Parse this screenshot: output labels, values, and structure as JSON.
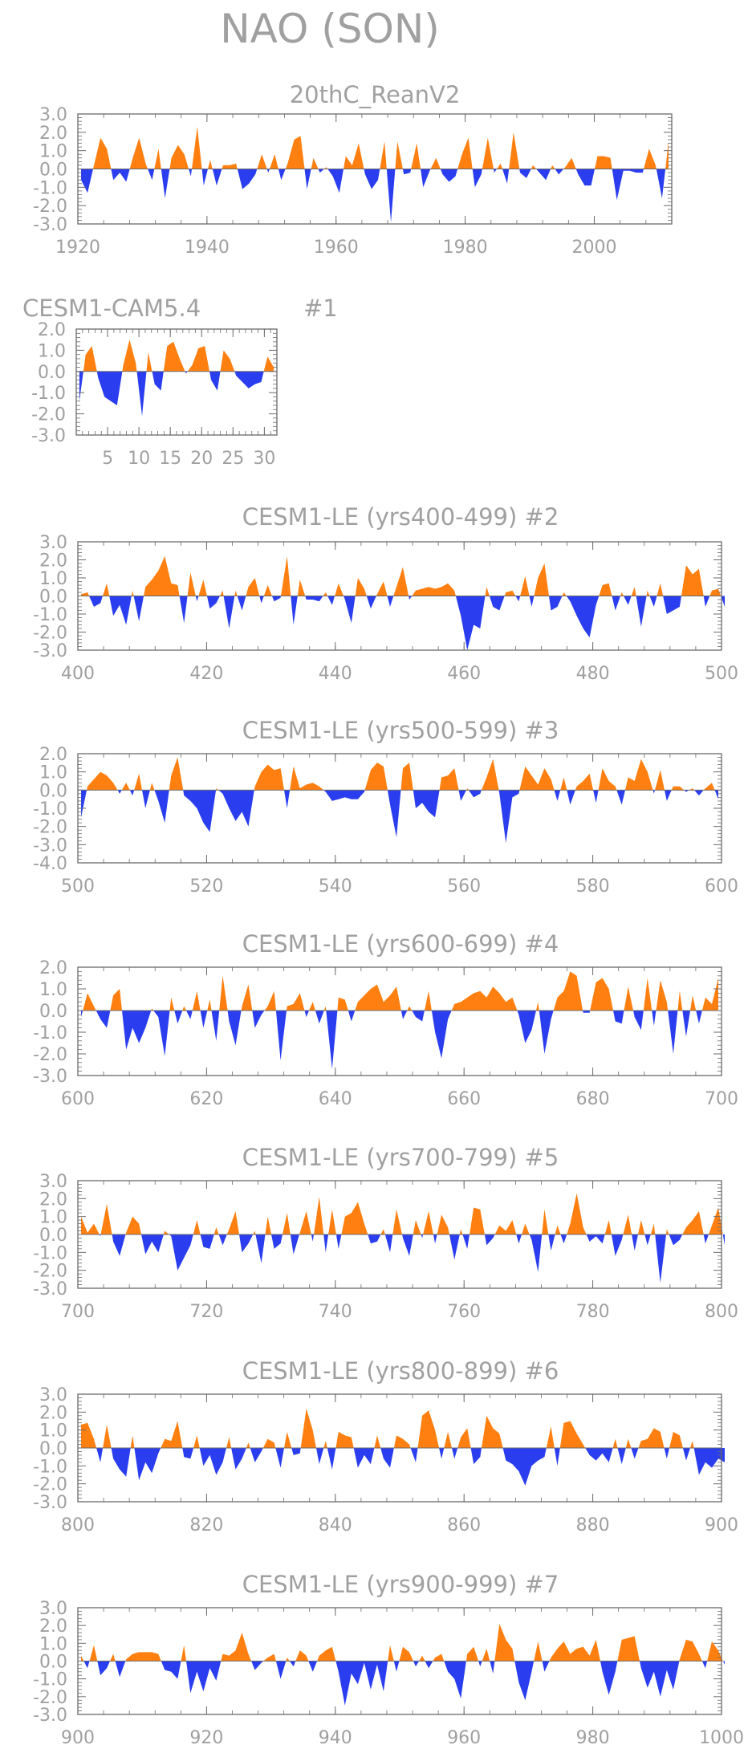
{
  "main_title": "NAO (SON)",
  "colors": {
    "positive": "#ff8010",
    "negative": "#2a3ef0",
    "axis": "#6a6a6a",
    "text": "#a0a0a0"
  },
  "chart_data": [
    {
      "type": "area",
      "title": "20thC_ReanV2",
      "xlim": [
        1920,
        2012
      ],
      "ylim": [
        -3.0,
        3.0
      ],
      "xticks": [
        1920,
        1940,
        1960,
        1980,
        2000
      ],
      "yticks": [
        -3.0,
        -2.0,
        -1.0,
        0.0,
        1.0,
        2.0,
        3.0
      ],
      "x_start": 1920,
      "values": [
        -0.6,
        -1.3,
        0.2,
        1.7,
        1.1,
        -0.6,
        -0.2,
        -0.7,
        0.6,
        1.7,
        0.3,
        -0.6,
        1.1,
        -1.6,
        0.6,
        1.3,
        0.8,
        -0.4,
        2.3,
        -0.9,
        0.5,
        -0.9,
        0.2,
        0.2,
        0.3,
        -1.1,
        -0.8,
        -0.3,
        0.8,
        -0.2,
        0.8,
        -0.6,
        0.3,
        1.6,
        1.8,
        -1.1,
        0.6,
        -0.2,
        0.1,
        -0.4,
        -1.3,
        0.7,
        0.2,
        1.4,
        -0.3,
        -1.1,
        -0.6,
        1.5,
        -2.9,
        1.5,
        -0.3,
        -0.2,
        1.4,
        -1.0,
        -0.1,
        0.6,
        -0.3,
        -0.7,
        -0.4,
        0.8,
        1.7,
        -1.0,
        -0.3,
        1.7,
        -0.2,
        0.3,
        -0.8,
        2.0,
        -0.2,
        -0.5,
        0.2,
        -0.2,
        -0.6,
        0.2,
        -0.3,
        0.1,
        0.6,
        -0.3,
        -0.9,
        -0.9,
        0.7,
        0.7,
        0.6,
        -1.7,
        -0.1,
        -0.1,
        -0.2,
        -0.2,
        1.1,
        0.2,
        -1.6,
        1.5
      ]
    },
    {
      "type": "area",
      "title": "CESM1-CAM5.4",
      "label": "#1",
      "xlim": [
        0,
        32
      ],
      "ylim": [
        -3.0,
        2.0
      ],
      "xticks": [
        5,
        10,
        15,
        20,
        25,
        30
      ],
      "yticks": [
        -3.0,
        -2.0,
        -1.0,
        0.0,
        1.0,
        2.0
      ],
      "x_start": 0,
      "values": [
        -1.4,
        0.8,
        1.2,
        -0.3,
        -1.2,
        -1.4,
        -1.6,
        0.3,
        1.5,
        0.4,
        -2.1,
        0.9,
        -0.6,
        -0.9,
        1.2,
        1.4,
        0.6,
        -0.1,
        0.3,
        1.1,
        1.2,
        -0.4,
        -0.9,
        1.0,
        0.6,
        -0.2,
        -0.5,
        -0.8,
        -0.6,
        -0.5,
        0.7,
        0.2
      ]
    },
    {
      "type": "area",
      "title": "CESM1-LE (yrs400-499)",
      "label": "#2",
      "xlim": [
        400,
        500
      ],
      "ylim": [
        -3.0,
        3.0
      ],
      "xticks": [
        400,
        420,
        440,
        460,
        480,
        500
      ],
      "yticks": [
        -3.0,
        -2.0,
        -1.0,
        0.0,
        1.0,
        2.0,
        3.0
      ],
      "x_start": 400,
      "values": [
        0.1,
        0.2,
        -0.6,
        -0.4,
        0.7,
        -1.1,
        -0.5,
        -1.6,
        0.3,
        -1.4,
        0.5,
        0.9,
        1.4,
        2.2,
        0.7,
        0.6,
        -1.5,
        1.3,
        -0.3,
        0.9,
        -0.7,
        -0.4,
        0.3,
        -1.8,
        0.3,
        -0.8,
        0.5,
        1.0,
        -0.4,
        0.6,
        -0.3,
        -0.1,
        2.2,
        -1.6,
        0.9,
        -0.2,
        -0.2,
        -0.3,
        0.2,
        -0.5,
        0.7,
        -0.2,
        -1.5,
        1.0,
        0.4,
        -0.7,
        0.1,
        0.8,
        -0.6,
        0.5,
        1.6,
        -0.2,
        0.3,
        0.4,
        0.5,
        0.4,
        0.5,
        0.7,
        0.3,
        -1.1,
        -3.0,
        -1.6,
        -1.8,
        0.5,
        -0.6,
        -0.8,
        0.2,
        0.3,
        -0.3,
        1.1,
        -0.6,
        1.0,
        1.8,
        -0.8,
        -0.6,
        0.2,
        -0.3,
        -1.1,
        -1.8,
        -2.3,
        -0.5,
        0.6,
        0.7,
        -0.8,
        0.2,
        -0.5,
        0.5,
        -1.7,
        0.3,
        -0.6,
        0.7,
        -1.0,
        -0.8,
        -0.6,
        1.7,
        1.2,
        1.5,
        -0.6,
        0.3,
        0.4,
        -0.6
      ]
    },
    {
      "type": "area",
      "title": "CESM1-LE (yrs500-599)",
      "label": "#3",
      "xlim": [
        500,
        600
      ],
      "ylim": [
        -4.0,
        2.0
      ],
      "xticks": [
        500,
        520,
        540,
        560,
        580,
        600
      ],
      "yticks": [
        -4.0,
        -3.0,
        -2.0,
        -1.0,
        0.0,
        1.0,
        2.0
      ],
      "x_start": 500,
      "values": [
        -1.5,
        0.2,
        0.6,
        1.0,
        0.8,
        0.4,
        -0.2,
        0.4,
        -0.3,
        0.9,
        -1.0,
        0.4,
        -0.6,
        -1.8,
        0.8,
        1.8,
        -0.3,
        -0.6,
        -1.0,
        -1.8,
        -2.3,
        0.1,
        -0.2,
        -1.0,
        -1.7,
        -1.2,
        -2.0,
        0.2,
        1.0,
        1.4,
        1.1,
        1.2,
        -1.0,
        1.3,
        0.1,
        0.3,
        0.4,
        0.2,
        -0.1,
        -0.6,
        -0.5,
        -0.4,
        -0.5,
        -0.5,
        -0.1,
        1.1,
        1.5,
        1.3,
        -0.8,
        -2.6,
        1.2,
        1.5,
        -1.0,
        -0.7,
        -1.2,
        -1.5,
        0.7,
        0.8,
        1.2,
        -0.6,
        0.1,
        -0.4,
        -0.2,
        0.7,
        1.7,
        -0.2,
        -2.9,
        -0.4,
        -0.2,
        1.3,
        0.8,
        0.3,
        1.2,
        0.6,
        -0.6,
        0.7,
        -0.8,
        0.2,
        0.5,
        0.9,
        -0.7,
        1.2,
        0.5,
        0.2,
        -0.8,
        0.7,
        0.5,
        1.7,
        1.0,
        -0.2,
        1.1,
        -0.6,
        0.2,
        0.2,
        -0.1,
        0.1,
        -0.3,
        0.1,
        0.4,
        -0.5
      ]
    },
    {
      "type": "area",
      "title": "CESM1-LE (yrs600-699)",
      "label": "#4",
      "xlim": [
        600,
        700
      ],
      "ylim": [
        -3.0,
        2.0
      ],
      "xticks": [
        600,
        620,
        640,
        660,
        680,
        700
      ],
      "yticks": [
        -3.0,
        -2.0,
        -1.0,
        0.0,
        1.0,
        2.0
      ],
      "x_start": 600,
      "values": [
        -0.3,
        0.8,
        0.2,
        -0.4,
        -0.8,
        0.7,
        1.0,
        -1.8,
        -0.8,
        -1.5,
        -0.8,
        0.1,
        -0.3,
        -2.1,
        0.6,
        -0.6,
        0.2,
        -0.4,
        0.9,
        -0.8,
        0.5,
        -1.4,
        1.6,
        -0.5,
        -1.6,
        0.2,
        1.2,
        -0.8,
        -0.2,
        0.2,
        0.9,
        -2.3,
        0.2,
        0.3,
        0.8,
        -0.3,
        0.4,
        -0.6,
        0.2,
        -2.7,
        0.6,
        0.5,
        -0.5,
        0.4,
        0.7,
        1.0,
        1.2,
        0.4,
        0.7,
        1.1,
        -0.4,
        0.2,
        -0.3,
        -0.5,
        0.9,
        -1.0,
        -2.2,
        -0.4,
        0.3,
        0.4,
        0.6,
        0.8,
        0.9,
        0.6,
        1.1,
        0.8,
        0.4,
        0.6,
        -0.2,
        -1.5,
        -0.9,
        0.4,
        -2.0,
        -0.4,
        0.6,
        0.9,
        1.8,
        1.6,
        -0.1,
        -0.1,
        1.3,
        1.5,
        1.0,
        -0.5,
        -0.6,
        1.1,
        -0.3,
        -0.9,
        1.5,
        -0.7,
        1.4,
        0.4,
        -2.0,
        0.9,
        -1.2,
        0.7,
        -0.6,
        0.6,
        0.3,
        1.5
      ]
    },
    {
      "type": "area",
      "title": "CESM1-LE (yrs700-799)",
      "label": "#5",
      "xlim": [
        700,
        800
      ],
      "ylim": [
        -3.0,
        3.0
      ],
      "xticks": [
        700,
        720,
        740,
        760,
        780,
        800
      ],
      "yticks": [
        -3.0,
        -2.0,
        -1.0,
        0.0,
        1.0,
        2.0,
        3.0
      ],
      "x_start": 700,
      "values": [
        1.0,
        0.1,
        0.6,
        -0.1,
        1.7,
        -0.4,
        -1.2,
        0.1,
        1.0,
        0.6,
        -1.1,
        -0.4,
        -1.0,
        0.2,
        -0.1,
        -2.0,
        -1.3,
        -0.6,
        0.8,
        -0.7,
        -0.8,
        0.4,
        -0.6,
        0.3,
        1.3,
        -1.0,
        -0.5,
        0.2,
        -1.6,
        1.0,
        -0.8,
        -0.5,
        1.2,
        -1.1,
        0.1,
        1.3,
        -0.4,
        2.1,
        -1.0,
        1.4,
        -0.8,
        1.0,
        1.2,
        1.8,
        0.6,
        -0.5,
        -0.4,
        0.3,
        -1.0,
        1.4,
        -0.2,
        -1.2,
        0.8,
        -0.2,
        1.3,
        -0.5,
        1.1,
        0.4,
        -1.4,
        0.3,
        -0.8,
        1.5,
        1.4,
        -0.6,
        -0.2,
        0.5,
        0.2,
        0.8,
        -0.5,
        0.6,
        -0.3,
        -2.1,
        1.4,
        -0.9,
        0.5,
        -0.5,
        0.6,
        2.3,
        0.4,
        -0.4,
        -0.1,
        -0.5,
        0.8,
        -1.2,
        -0.3,
        1.1,
        -0.9,
        0.8,
        -0.6,
        0.6,
        -2.7,
        0.3,
        -0.6,
        -0.3,
        0.4,
        0.8,
        1.3,
        -0.5,
        0.5,
        1.5,
        -0.6
      ]
    },
    {
      "type": "area",
      "title": "CESM1-LE (yrs800-899)",
      "label": "#6",
      "xlim": [
        800,
        900
      ],
      "ylim": [
        -3.0,
        3.0
      ],
      "xticks": [
        800,
        820,
        840,
        860,
        880,
        900
      ],
      "yticks": [
        -3.0,
        -2.0,
        -1.0,
        0.0,
        1.0,
        2.0,
        3.0
      ],
      "x_start": 800,
      "values": [
        1.3,
        1.4,
        0.5,
        -0.8,
        1.3,
        -0.6,
        -1.2,
        -1.6,
        0.7,
        -1.8,
        -0.8,
        -1.4,
        -0.3,
        0.5,
        0.4,
        1.5,
        -0.5,
        -0.6,
        0.7,
        -1.0,
        -0.4,
        -1.5,
        -0.8,
        0.6,
        -1.2,
        -0.6,
        0.3,
        -0.8,
        -0.2,
        0.5,
        0.3,
        -1.1,
        0.9,
        -0.4,
        -0.3,
        2.2,
        1.0,
        -0.9,
        0.4,
        -1.2,
        0.9,
        0.7,
        0.6,
        -1.1,
        -0.4,
        -0.9,
        0.7,
        -0.6,
        -1.1,
        0.7,
        0.5,
        0.2,
        -0.8,
        1.8,
        2.1,
        1.0,
        -0.6,
        0.9,
        -0.6,
        0.6,
        1.1,
        -0.9,
        -0.5,
        1.8,
        1.1,
        0.8,
        -0.7,
        -0.9,
        -1.3,
        -2.1,
        -1.0,
        -0.7,
        -0.5,
        1.2,
        -1.0,
        1.4,
        1.5,
        0.8,
        0.2,
        -0.4,
        -0.7,
        -0.3,
        -0.8,
        0.5,
        -0.9,
        0.5,
        -0.6,
        0.4,
        0.5,
        1.1,
        0.9,
        -0.6,
        0.9,
        0.7,
        -0.7,
        0.4,
        -1.5,
        -0.8,
        -1.1,
        -0.6,
        -0.8
      ]
    },
    {
      "type": "area",
      "title": "CESM1-LE (yrs900-999)",
      "label": "#7",
      "xlim": [
        900,
        1000
      ],
      "ylim": [
        -3.0,
        3.0
      ],
      "xticks": [
        900,
        920,
        940,
        960,
        980,
        1000
      ],
      "yticks": [
        -3.0,
        -2.0,
        -1.0,
        0.0,
        1.0,
        2.0,
        3.0
      ],
      "x_start": 900,
      "values": [
        0.3,
        -0.4,
        0.9,
        -0.8,
        -0.4,
        0.4,
        -0.9,
        0.1,
        0.4,
        0.5,
        0.5,
        0.5,
        0.4,
        -0.5,
        -0.6,
        -1.0,
        0.9,
        -1.8,
        -0.6,
        -1.7,
        -0.4,
        -1.1,
        0.4,
        0.3,
        0.6,
        1.6,
        0.4,
        -0.5,
        -0.1,
        0.2,
        0.4,
        -1.0,
        0.2,
        -0.3,
        0.6,
        0.3,
        -0.6,
        0.3,
        0.6,
        0.8,
        -0.6,
        -2.5,
        -0.7,
        -1.3,
        -0.1,
        -1.6,
        -0.2,
        -1.7,
        0.9,
        -0.6,
        0.8,
        0.5,
        -0.3,
        0.3,
        -0.4,
        0.2,
        0.4,
        -0.6,
        -1.0,
        -2.1,
        0.4,
        0.8,
        -0.3,
        0.7,
        -0.7,
        2.1,
        1.2,
        0.7,
        -1.2,
        -2.2,
        -0.6,
        1.1,
        -0.6,
        0.2,
        0.7,
        1.1,
        0.4,
        0.7,
        0.8,
        0.3,
        1.2,
        -0.6,
        -1.9,
        -0.6,
        1.2,
        1.3,
        1.4,
        -0.4,
        -1.5,
        -0.6,
        -2.0,
        -0.5,
        -1.6,
        0.1,
        1.2,
        1.1,
        0.4,
        -0.4,
        1.1,
        0.6,
        -0.2
      ]
    }
  ]
}
